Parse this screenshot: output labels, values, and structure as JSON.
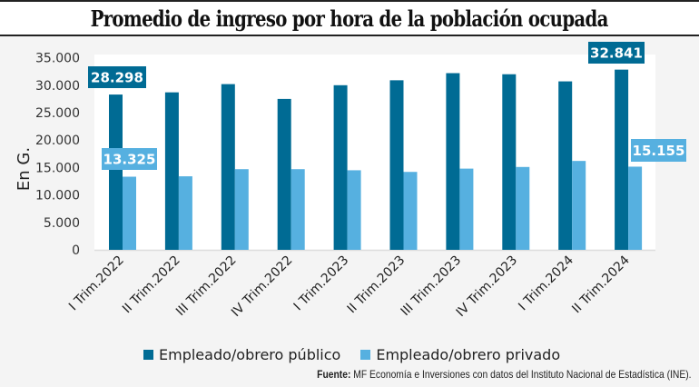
{
  "chart_data": {
    "type": "bar",
    "title": "Promedio de ingreso por hora de la población ocupada",
    "xlabel": "",
    "ylabel": "En G.",
    "ylim": [
      0,
      35000
    ],
    "yticks": [
      0,
      5000,
      10000,
      15000,
      20000,
      25000,
      30000,
      35000
    ],
    "ytick_labels": [
      "0",
      "5.000",
      "10.000",
      "15.000",
      "20.000",
      "25.000",
      "30.000",
      "35.000"
    ],
    "grid": false,
    "legend_position": "bottom",
    "categories": [
      "I Trim.2022",
      "II Trim.2022",
      "III Trim.2022",
      "IV Trim.2022",
      "I Trim.2023",
      "II Trim.2023",
      "III Trim.2023",
      "IV Trim.2023",
      "I Trim.2024",
      "II Trim.2024"
    ],
    "series": [
      {
        "name": "Empleado/obrero público",
        "color": "#006b94",
        "values": [
          28298,
          28700,
          30200,
          27500,
          30000,
          30900,
          32200,
          32000,
          30700,
          32841
        ]
      },
      {
        "name": "Empleado/obrero privado",
        "color": "#56b0e0",
        "values": [
          13325,
          13400,
          14700,
          14700,
          14500,
          14200,
          14800,
          15100,
          16200,
          15155
        ]
      }
    ],
    "annotations": [
      {
        "series": 0,
        "index": 0,
        "text": "28.298"
      },
      {
        "series": 1,
        "index": 0,
        "text": "13.325"
      },
      {
        "series": 0,
        "index": 9,
        "text": "32.841"
      },
      {
        "series": 1,
        "index": 9,
        "text": "15.155"
      }
    ]
  },
  "legend": {
    "items": [
      {
        "label": "Empleado/obrero público",
        "color": "#006b94"
      },
      {
        "label": "Empleado/obrero privado",
        "color": "#56b0e0"
      }
    ]
  },
  "source": {
    "prefix": "Fuente:",
    "text": " MF Economía e Inversiones con datos del Instituto Nacional de Estadística (INE)."
  }
}
